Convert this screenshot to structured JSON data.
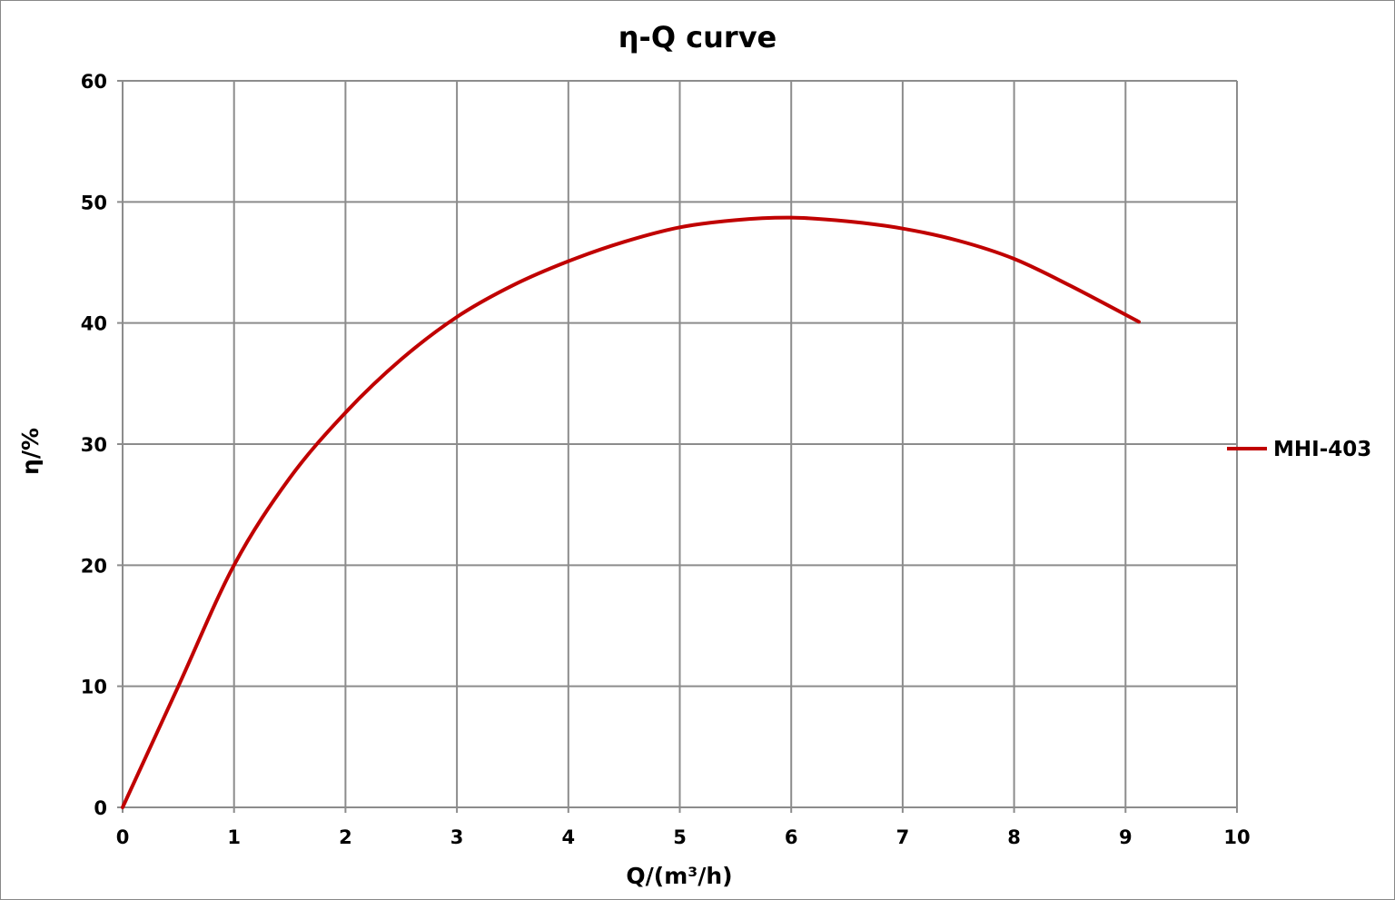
{
  "chart_data": {
    "type": "line",
    "title": "η-Q  curve",
    "xlabel": "Q/(m³/h)",
    "ylabel": "η/%",
    "xlim": [
      0,
      10
    ],
    "ylim": [
      0,
      60
    ],
    "xticks": [
      "0",
      "1",
      "2",
      "3",
      "4",
      "5",
      "6",
      "7",
      "8",
      "9",
      "10"
    ],
    "yticks": [
      "0",
      "10",
      "20",
      "30",
      "40",
      "50",
      "60"
    ],
    "grid": true,
    "legend_position": "right",
    "series": [
      {
        "name": "MHI-403",
        "color": "#c00000",
        "x": [
          0,
          0.5,
          1,
          1.5,
          2,
          2.5,
          3,
          3.5,
          4,
          4.5,
          5,
          5.5,
          6,
          6.5,
          7,
          7.5,
          8,
          8.5,
          9.12
        ],
        "y": [
          0,
          10,
          20,
          27.2,
          32.6,
          37,
          40.5,
          43.1,
          45.1,
          46.7,
          47.9,
          48.5,
          48.7,
          48.4,
          47.8,
          46.8,
          45.3,
          43.1,
          40.1
        ]
      }
    ]
  }
}
